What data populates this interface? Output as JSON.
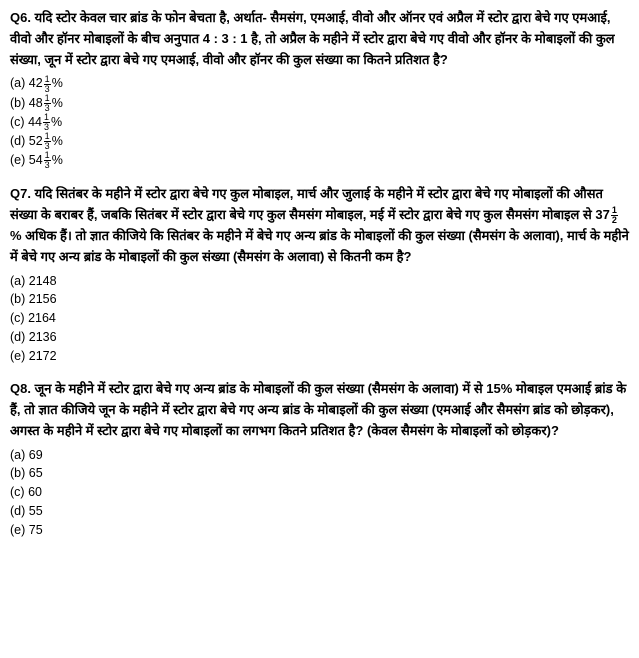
{
  "questions": [
    {
      "qnum": "Q6.",
      "text": "यदि स्टोर केवल चार ब्रांड के फोन बेचता है, अर्थात- सैमसंग, एमआई, वीवो और ऑनर एवं अप्रैल में स्टोर द्वारा बेचे गए एमआई, वीवो और हॉनर मोबाइलों के बीच अनुपात 4 : 3 : 1 है, तो अप्रैल के महीने में स्टोर द्वारा बेचे गए वीवो और हॉनर के मोबाइलों की कुल संख्या, जून में स्टोर द्वारा बेचे गए एमआई, वीवो और हॉनर की कुल संख्या का कितने प्रतिशत है?",
      "options": [
        {
          "label": "(a)",
          "whole": "42",
          "num": "1",
          "den": "3",
          "suffix": "%"
        },
        {
          "label": "(b)",
          "whole": "48",
          "num": "1",
          "den": "3",
          "suffix": "%"
        },
        {
          "label": "(c)",
          "whole": "44",
          "num": "1",
          "den": "3",
          "suffix": "%"
        },
        {
          "label": "(d)",
          "whole": "52",
          "num": "1",
          "den": "3",
          "suffix": "%"
        },
        {
          "label": "(e)",
          "whole": "54",
          "num": "1",
          "den": "3",
          "suffix": "%"
        }
      ],
      "type": "frac"
    },
    {
      "qnum": "Q7.",
      "text_part1": "यदि सितंबर के महीने में स्टोर द्वारा बेचे गए कुल मोबाइल, मार्च और जुलाई के महीने में स्टोर द्वारा बेचे गए मोबाइलों की औसत संख्या के बराबर हैं, जबकि सितंबर में स्टोर द्वारा बेचे गए कुल सैमसंग मोबाइल, मई में स्टोर द्वारा बेचे गए कुल सैमसंग मोबाइल से 37",
      "text_num": "1",
      "text_den": "2",
      "text_part2": "% अधिक हैं। तो ज्ञात कीजिये कि सितंबर के महीने में बेचे गए अन्य ब्रांड के मोबाइलों की कुल संख्या (सैमसंग के अलावा), मार्च के महीने में बेचे गए अन्य ब्रांड के मोबाइलों की कुल संख्या (सैमसंग के अलावा) से कितनी कम है?",
      "options": [
        {
          "label": "(a)",
          "value": "2148"
        },
        {
          "label": "(b)",
          "value": "2156"
        },
        {
          "label": "(c)",
          "value": "2164"
        },
        {
          "label": "(d)",
          "value": "2136"
        },
        {
          "label": "(e)",
          "value": "2172"
        }
      ],
      "type": "plain"
    },
    {
      "qnum": "Q8.",
      "text": "जून के महीने में स्टोर द्वारा बेचे गए अन्य ब्रांड के मोबाइलों की कुल संख्या (सैमसंग के अलावा) में से 15% मोबाइल एमआई ब्रांड के हैं, तो ज्ञात कीजिये जून के महीने में स्टोर द्वारा बेचे गए अन्य ब्रांड के मोबाइलों की कुल संख्या (एमआई और सैमसंग ब्रांड को छोड़कर), अगस्त के महीने में स्टोर द्वारा बेचे गए मोबाइलों का लगभग कितने प्रतिशत है?  (केवल सैमसंग के मोबाइलों को छोड़कर)?",
      "options": [
        {
          "label": "(a)",
          "value": "69"
        },
        {
          "label": "(b)",
          "value": "65"
        },
        {
          "label": "(c)",
          "value": "60"
        },
        {
          "label": "(d)",
          "value": "55"
        },
        {
          "label": "(e)",
          "value": "75"
        }
      ],
      "type": "plain"
    }
  ]
}
